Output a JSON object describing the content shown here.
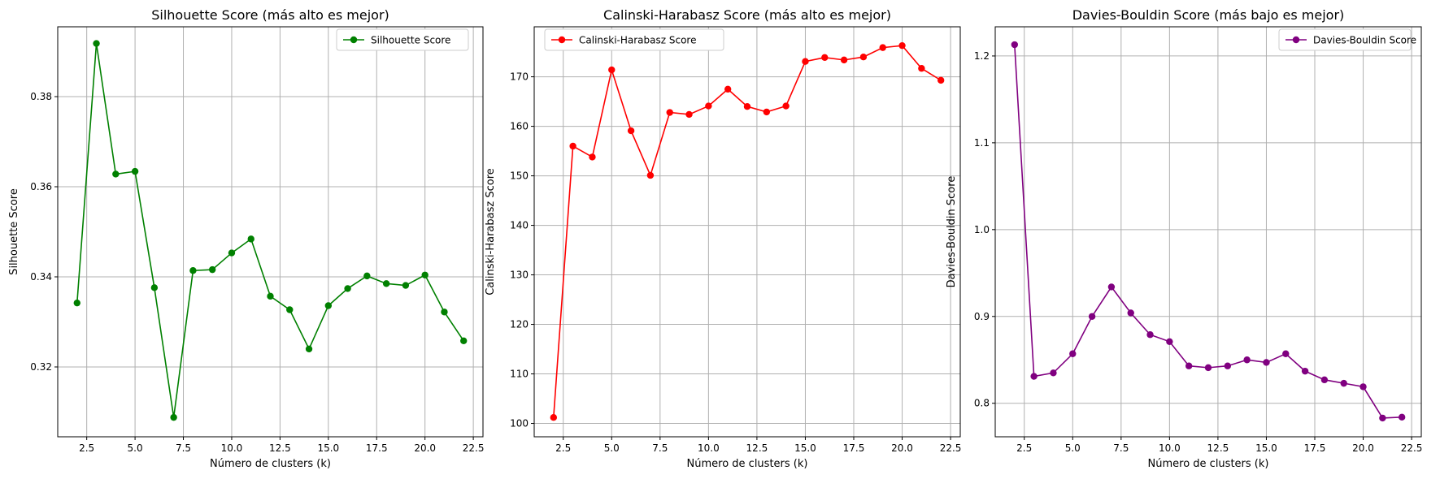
{
  "chart_data": [
    {
      "type": "line",
      "title": "Silhouette Score (más alto es mejor)",
      "xlabel": "Número de clusters (k)",
      "ylabel": "Silhouette Score",
      "xlim": [
        1.0,
        23.0
      ],
      "ylim": [
        0.3045,
        0.3955
      ],
      "xticks": [
        "2.5",
        "5.0",
        "7.5",
        "10.0",
        "12.5",
        "15.0",
        "17.5",
        "20.0",
        "22.5"
      ],
      "yticks": [
        "0.32",
        "0.34",
        "0.36",
        "0.38"
      ],
      "grid": true,
      "legend_position": "top-right",
      "color": "#008000",
      "series": [
        {
          "name": "Silhouette Score",
          "x": [
            2,
            3,
            4,
            5,
            6,
            7,
            8,
            9,
            10,
            11,
            12,
            13,
            14,
            15,
            16,
            17,
            18,
            19,
            20,
            21,
            22
          ],
          "values": [
            0.3342,
            0.3918,
            0.3628,
            0.3634,
            0.3376,
            0.3088,
            0.3414,
            0.3416,
            0.3453,
            0.3484,
            0.3357,
            0.3327,
            0.324,
            0.3336,
            0.3374,
            0.3402,
            0.3385,
            0.3381,
            0.3404,
            0.3322,
            0.3258
          ]
        }
      ]
    },
    {
      "type": "line",
      "title": "Calinski-Harabasz Score (más alto es mejor)",
      "xlabel": "Número de clusters (k)",
      "ylabel": "Calinski-Harabasz Score",
      "xlim": [
        1.0,
        23.0
      ],
      "ylim": [
        97.3,
        180.1
      ],
      "xticks": [
        "2.5",
        "5.0",
        "7.5",
        "10.0",
        "12.5",
        "15.0",
        "17.5",
        "20.0",
        "22.5"
      ],
      "yticks": [
        "100",
        "110",
        "120",
        "130",
        "140",
        "150",
        "160",
        "170"
      ],
      "grid": true,
      "legend_position": "top-left",
      "color": "#ff0000",
      "series": [
        {
          "name": "Calinski-Harabasz Score",
          "x": [
            2,
            3,
            4,
            5,
            6,
            7,
            8,
            9,
            10,
            11,
            12,
            13,
            14,
            15,
            16,
            17,
            18,
            19,
            20,
            21,
            22
          ],
          "values": [
            101.2,
            156.0,
            153.8,
            171.4,
            159.1,
            150.1,
            162.8,
            162.4,
            164.1,
            167.5,
            164.0,
            162.9,
            164.1,
            173.1,
            173.9,
            173.4,
            174.0,
            175.9,
            176.3,
            171.7,
            169.3
          ]
        }
      ]
    },
    {
      "type": "line",
      "title": "Davies-Bouldin Score (más bajo es mejor)",
      "xlabel": "Número de clusters (k)",
      "ylabel": "Davies-Bouldin Score",
      "xlim": [
        1.0,
        23.0
      ],
      "ylim": [
        0.7614,
        1.2336
      ],
      "xticks": [
        "2.5",
        "5.0",
        "7.5",
        "10.0",
        "12.5",
        "15.0",
        "17.5",
        "20.0",
        "22.5"
      ],
      "yticks": [
        "0.8",
        "0.9",
        "1.0",
        "1.1",
        "1.2"
      ],
      "grid": true,
      "legend_position": "top-right",
      "color": "#800080",
      "series": [
        {
          "name": "Davies-Bouldin Score",
          "x": [
            2,
            3,
            4,
            5,
            6,
            7,
            8,
            9,
            10,
            11,
            12,
            13,
            14,
            15,
            16,
            17,
            18,
            19,
            20,
            21,
            22
          ],
          "values": [
            1.213,
            0.831,
            0.835,
            0.857,
            0.9,
            0.934,
            0.904,
            0.879,
            0.871,
            0.843,
            0.841,
            0.843,
            0.85,
            0.847,
            0.857,
            0.837,
            0.827,
            0.823,
            0.819,
            0.783,
            0.784
          ]
        }
      ]
    }
  ]
}
